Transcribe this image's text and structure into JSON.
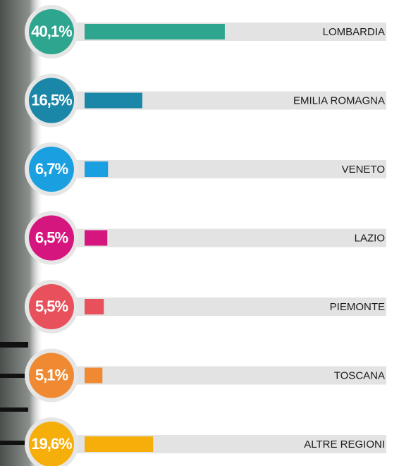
{
  "chart_data": {
    "type": "bar",
    "categories": [
      "LOMBARDIA",
      "EMILIA ROMAGNA",
      "VENETO",
      "LAZIO",
      "PIEMONTE",
      "TOSCANA",
      "ALTRE REGIONI"
    ],
    "values": [
      40.1,
      16.5,
      6.7,
      6.5,
      5.5,
      5.1,
      19.6
    ],
    "value_labels": [
      "40,1%",
      "16,5%",
      "6,7%",
      "6,5%",
      "5,5%",
      "5,1%",
      "19,6%"
    ],
    "colors": [
      "#2ea58f",
      "#1a86a8",
      "#1aa0e0",
      "#d6167f",
      "#e8505b",
      "#ef8a32",
      "#f5ae0a"
    ]
  }
}
